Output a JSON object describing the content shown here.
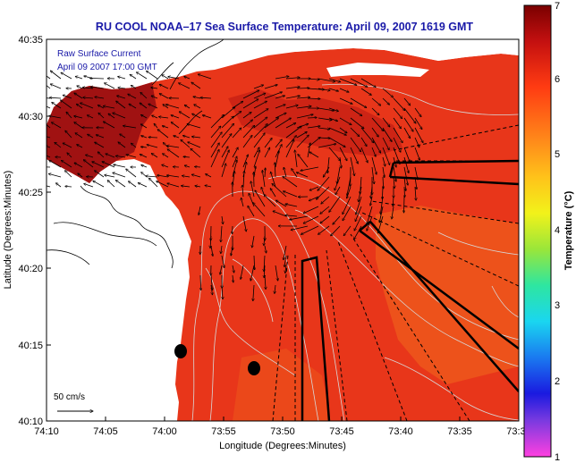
{
  "map": {
    "title": "RU COOL  NOAA–17  Sea Surface Temperature:  April 09, 2007 1619 GMT",
    "annotation_line1": "Raw Surface Current",
    "annotation_line2": "April 09 2007 17:00 GMT",
    "scale_label": "50 cm/s",
    "xlabel": "Longitude (Degrees:Minutes)",
    "ylabel": "Latitude (Degrees:Minutes)",
    "x_ticks": [
      "74:10",
      "74:05",
      "74:00",
      "73:55",
      "73:50",
      "73:45",
      "73:40",
      "73:35",
      "73:3"
    ],
    "y_ticks": [
      "40:35",
      "40:30",
      "40:25",
      "40:20",
      "40:15",
      "40:10"
    ],
    "colors": {
      "land": "#ffffff",
      "sea_main": "#e8361a",
      "sea_warm_offshore": "#f06a1e",
      "sea_dark": "#9e1010",
      "title": "#1a1aa8"
    }
  },
  "colorbar": {
    "label": "Temperature (°C)",
    "ticks": [
      "7",
      "6",
      "5",
      "4",
      "3",
      "2",
      "1"
    ],
    "range": [
      1,
      7
    ]
  }
}
